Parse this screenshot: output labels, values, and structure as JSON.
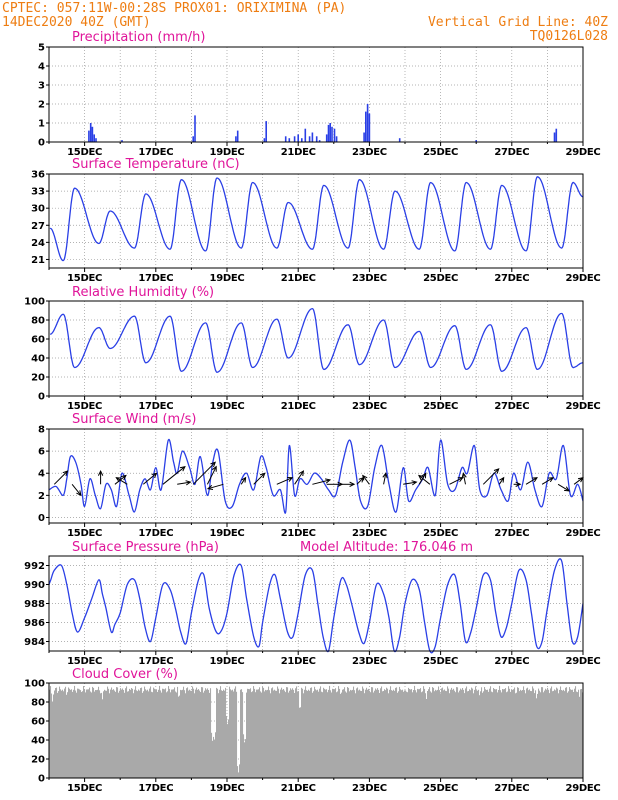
{
  "header": {
    "line1_left": "CPTEC:   057:11W-00:28S   PROX01: ORIXIMINA (PA)",
    "line2_left": "14DEC2020 40Z (GMT)",
    "line2_right": "Vertical Grid Line: 40Z",
    "line3_right": "TQ0126L028"
  },
  "colors": {
    "header": "#ee7d12",
    "panel_title": "#e0159a",
    "series": "#2a3fe6",
    "cloud": "#a9a9a9",
    "arrow": "#000000"
  },
  "x_axis": {
    "range_days": [
      14.0,
      29.0
    ],
    "tick_days": [
      15,
      17,
      19,
      21,
      23,
      25,
      27,
      29
    ],
    "tick_labels": [
      "15DEC",
      "17DEC",
      "19DEC",
      "21DEC",
      "23DEC",
      "25DEC",
      "27DEC",
      "29DEC"
    ],
    "minor_every_day": true
  },
  "chart_data": [
    {
      "type": "bar",
      "title": "Precipitation (mm/h)",
      "ylim": [
        0,
        5
      ],
      "yticks": [
        0,
        1,
        2,
        3,
        4,
        5
      ],
      "x": [
        15.12,
        15.17,
        15.22,
        15.27,
        15.32,
        16.05,
        18.05,
        18.1,
        19.25,
        19.3,
        20.05,
        20.1,
        20.65,
        20.75,
        20.9,
        21.0,
        21.1,
        21.2,
        21.32,
        21.4,
        21.52,
        21.6,
        21.8,
        21.85,
        21.9,
        21.95,
        22.02,
        22.08,
        22.85,
        22.9,
        22.95,
        23.0,
        23.85,
        26.0,
        28.2,
        28.25
      ],
      "values": [
        0.6,
        1.0,
        0.8,
        0.4,
        0.2,
        0.1,
        0.3,
        1.4,
        0.3,
        0.6,
        0.2,
        1.1,
        0.3,
        0.2,
        0.3,
        0.4,
        0.2,
        0.7,
        0.3,
        0.5,
        0.3,
        0.1,
        0.4,
        0.9,
        1.0,
        0.8,
        0.7,
        0.3,
        0.5,
        1.6,
        2.0,
        1.5,
        0.2,
        0.1,
        0.5,
        0.7
      ]
    },
    {
      "type": "line",
      "title": "Surface Temperature (nC)",
      "ylim": [
        19.5,
        36
      ],
      "yticks": [
        21,
        24,
        27,
        30,
        33,
        36
      ],
      "min_times": [
        14.03,
        14.4,
        15.4,
        16.4,
        17.4,
        18.4,
        19.4,
        20.4,
        21.4,
        22.4,
        23.4,
        24.4,
        25.4,
        26.4,
        27.4,
        28.4,
        29.0
      ],
      "max_times": [
        14.72,
        15.72,
        16.72,
        17.72,
        18.72,
        19.72,
        20.72,
        21.72,
        22.72,
        23.72,
        24.72,
        25.72,
        26.72,
        27.72,
        28.72
      ],
      "min_values": [
        26.5,
        20.8,
        23.8,
        23.0,
        22.8,
        22.5,
        23.0,
        23.0,
        22.8,
        23.0,
        22.8,
        22.8,
        22.5,
        22.8,
        22.5,
        23.0,
        32.0
      ],
      "max_values": [
        33.5,
        29.5,
        32.5,
        35.0,
        35.3,
        34.5,
        31.0,
        34.0,
        35.0,
        33.0,
        34.5,
        34.5,
        34.0,
        35.5,
        34.5
      ]
    },
    {
      "type": "line",
      "title": "Relative Humidity (%)",
      "ylim": [
        0,
        100
      ],
      "yticks": [
        0,
        20,
        40,
        60,
        80,
        100
      ],
      "min_times": [
        14.72,
        15.72,
        16.72,
        17.72,
        18.72,
        19.72,
        20.72,
        21.72,
        22.72,
        23.72,
        24.72,
        25.72,
        26.72,
        27.72,
        28.72
      ],
      "max_times": [
        14.03,
        14.4,
        15.4,
        16.4,
        17.4,
        18.4,
        19.4,
        20.4,
        21.4,
        22.4,
        23.4,
        24.4,
        25.4,
        26.4,
        27.4,
        28.4,
        29.0
      ],
      "min_values": [
        30,
        50,
        35,
        26,
        25,
        30,
        40,
        28,
        33,
        30,
        30,
        28,
        26,
        28,
        30
      ],
      "max_values": [
        65,
        86,
        72,
        84,
        84,
        77,
        77,
        81,
        92,
        75,
        80,
        68,
        74,
        75,
        72,
        87,
        35
      ]
    },
    {
      "type": "line",
      "title": "Surface Wind (m/s)",
      "ylim": [
        -0.5,
        8
      ],
      "yticks": [
        0,
        2,
        4,
        6,
        8
      ],
      "x": [
        14.0,
        14.2,
        14.4,
        14.5,
        14.6,
        14.75,
        14.9,
        15.0,
        15.15,
        15.3,
        15.45,
        15.6,
        15.75,
        15.9,
        16.05,
        16.25,
        16.4,
        16.55,
        16.7,
        16.85,
        17.0,
        17.15,
        17.35,
        17.5,
        17.6,
        17.75,
        17.95,
        18.1,
        18.25,
        18.45,
        18.6,
        18.75,
        18.95,
        19.15,
        19.35,
        19.55,
        19.75,
        19.95,
        20.1,
        20.3,
        20.5,
        20.65,
        20.75,
        20.9,
        21.05,
        21.25,
        21.45,
        21.65,
        21.85,
        22.05,
        22.25,
        22.45,
        22.6,
        22.75,
        22.95,
        23.15,
        23.35,
        23.55,
        23.75,
        23.95,
        24.1,
        24.3,
        24.5,
        24.65,
        24.85,
        25.0,
        25.2,
        25.4,
        25.6,
        25.75,
        25.95,
        26.1,
        26.3,
        26.5,
        26.7,
        26.9,
        27.05,
        27.25,
        27.45,
        27.65,
        27.85,
        28.05,
        28.25,
        28.45,
        28.65,
        28.85,
        29.0
      ],
      "values": [
        2.5,
        2.8,
        2.0,
        3.5,
        5.5,
        5.0,
        3.0,
        1.0,
        3.5,
        2.0,
        0.8,
        3.0,
        2.5,
        1.0,
        4.0,
        2.0,
        0.5,
        2.5,
        3.5,
        2.5,
        4.5,
        2.5,
        7.0,
        5.0,
        4.0,
        6.0,
        4.5,
        3.0,
        5.5,
        2.0,
        5.0,
        6.0,
        1.5,
        1.0,
        3.0,
        4.0,
        2.5,
        5.5,
        4.5,
        2.0,
        2.5,
        0.5,
        6.5,
        2.0,
        3.5,
        3.0,
        4.0,
        3.5,
        2.5,
        2.0,
        5.0,
        7.0,
        4.5,
        1.5,
        1.0,
        4.5,
        6.5,
        3.0,
        0.5,
        4.5,
        1.5,
        2.5,
        3.5,
        4.5,
        2.0,
        7.0,
        3.0,
        2.5,
        4.5,
        4.0,
        6.5,
        2.5,
        2.0,
        4.0,
        2.5,
        1.5,
        4.0,
        2.5,
        5.0,
        2.5,
        1.0,
        4.0,
        3.5,
        6.5,
        2.0,
        3.0,
        1.5
      ],
      "arrows": [
        {
          "x": 14.15,
          "u": 0.6,
          "v": 0.6
        },
        {
          "x": 14.65,
          "u": 0.4,
          "v": -0.5
        },
        {
          "x": 15.45,
          "u": 0.0,
          "v": 0.6
        },
        {
          "x": 15.85,
          "u": 0.5,
          "v": 0.4
        },
        {
          "x": 16.2,
          "u": -0.5,
          "v": 0.3
        },
        {
          "x": 16.65,
          "u": 0.6,
          "v": 0.5
        },
        {
          "x": 17.2,
          "u": 1.0,
          "v": 0.8
        },
        {
          "x": 17.6,
          "u": 0.6,
          "v": 0.1
        },
        {
          "x": 18.05,
          "u": 1.0,
          "v": 1.0
        },
        {
          "x": 18.45,
          "u": 0.4,
          "v": 0.8
        },
        {
          "x": 18.9,
          "u": -0.7,
          "v": -0.2
        },
        {
          "x": 19.4,
          "u": 0.2,
          "v": 0.3
        },
        {
          "x": 19.75,
          "u": 0.5,
          "v": 0.5
        },
        {
          "x": 20.4,
          "u": 0.7,
          "v": 0.3
        },
        {
          "x": 20.9,
          "u": 0.4,
          "v": 0.6
        },
        {
          "x": 21.4,
          "u": 0.8,
          "v": 0.2
        },
        {
          "x": 21.8,
          "u": 0.7,
          "v": 0.0
        },
        {
          "x": 22.2,
          "u": 0.6,
          "v": 0.0
        },
        {
          "x": 22.65,
          "u": 0.3,
          "v": 0.3
        },
        {
          "x": 23.0,
          "u": -0.3,
          "v": 0.4
        },
        {
          "x": 23.4,
          "u": 0.1,
          "v": 0.5
        },
        {
          "x": 23.95,
          "u": 0.6,
          "v": 0.1
        },
        {
          "x": 24.4,
          "u": 0.3,
          "v": 0.5
        },
        {
          "x": 24.7,
          "u": -0.5,
          "v": 0.4
        },
        {
          "x": 25.25,
          "u": 0.6,
          "v": 0.3
        },
        {
          "x": 25.7,
          "u": -0.1,
          "v": 0.5
        },
        {
          "x": 26.2,
          "u": 0.7,
          "v": 0.7
        },
        {
          "x": 26.65,
          "u": 0.2,
          "v": 0.3
        },
        {
          "x": 27.05,
          "u": 0.3,
          "v": 0.0
        },
        {
          "x": 27.4,
          "u": 0.5,
          "v": 0.3
        },
        {
          "x": 27.85,
          "u": 0.5,
          "v": 0.3
        },
        {
          "x": 28.3,
          "u": 0.5,
          "v": -0.3
        },
        {
          "x": 28.75,
          "u": 0.4,
          "v": 0.3
        }
      ]
    },
    {
      "type": "line",
      "title": "Surface Pressure (hPa)",
      "annotation": "Model Altitude: 176.046 m",
      "ylim": [
        983,
        993
      ],
      "yticks": [
        984,
        986,
        988,
        990,
        992
      ],
      "x": [
        14.0,
        14.05,
        14.15,
        14.35,
        14.5,
        14.65,
        14.8,
        15.0,
        15.2,
        15.4,
        15.5,
        15.6,
        15.75,
        15.85,
        16.0,
        16.2,
        16.4,
        16.55,
        16.7,
        16.85,
        17.0,
        17.2,
        17.4,
        17.55,
        17.7,
        17.85,
        18.0,
        18.2,
        18.35,
        18.5,
        18.7,
        18.85,
        19.0,
        19.2,
        19.4,
        19.55,
        19.75,
        19.9,
        20.0,
        20.2,
        20.35,
        20.5,
        20.7,
        20.85,
        21.0,
        21.2,
        21.4,
        21.55,
        21.7,
        21.85,
        22.0,
        22.2,
        22.35,
        22.5,
        22.7,
        22.85,
        23.0,
        23.2,
        23.4,
        23.55,
        23.7,
        23.85,
        24.0,
        24.2,
        24.4,
        24.55,
        24.7,
        24.85,
        25.0,
        25.2,
        25.4,
        25.55,
        25.7,
        25.85,
        26.0,
        26.2,
        26.4,
        26.55,
        26.7,
        26.85,
        27.0,
        27.2,
        27.4,
        27.55,
        27.7,
        27.85,
        28.0,
        28.2,
        28.4,
        28.55,
        28.7,
        28.85,
        29.0
      ],
      "values": [
        990.0,
        990.5,
        991.5,
        992.0,
        990.0,
        987.0,
        985.0,
        986.5,
        988.5,
        990.5,
        989.0,
        987.5,
        985.0,
        985.8,
        987.0,
        990.0,
        990.5,
        988.5,
        985.5,
        984.0,
        986.5,
        990.0,
        989.5,
        987.5,
        985.0,
        983.8,
        987.0,
        990.5,
        991.0,
        987.5,
        985.0,
        985.2,
        987.0,
        991.0,
        992.0,
        988.5,
        984.5,
        983.5,
        986.0,
        990.0,
        991.0,
        988.5,
        985.0,
        984.5,
        987.0,
        991.0,
        991.5,
        988.0,
        984.5,
        983.0,
        986.5,
        990.5,
        990.0,
        988.0,
        985.0,
        983.8,
        986.0,
        990.0,
        989.0,
        986.5,
        983.0,
        984.5,
        988.0,
        990.5,
        989.5,
        986.0,
        983.0,
        983.5,
        986.5,
        990.0,
        991.0,
        988.0,
        984.0,
        985.0,
        987.5,
        991.0,
        990.5,
        987.0,
        984.5,
        985.5,
        988.0,
        991.5,
        990.5,
        987.0,
        983.5,
        984.0,
        987.5,
        991.5,
        992.5,
        988.0,
        984.0,
        984.5,
        988.0
      ]
    },
    {
      "type": "area",
      "title": "Cloud Cover (%)",
      "ylim": [
        0,
        100
      ],
      "yticks": [
        0,
        20,
        40,
        60,
        80,
        100
      ],
      "mean_value": 93,
      "dips": [
        {
          "x": 14.1,
          "value": 80
        },
        {
          "x": 14.5,
          "value": 85
        },
        {
          "x": 14.9,
          "value": 88
        },
        {
          "x": 15.5,
          "value": 82
        },
        {
          "x": 16.8,
          "value": 90
        },
        {
          "x": 17.3,
          "value": 90
        },
        {
          "x": 17.65,
          "value": 82
        },
        {
          "x": 18.6,
          "value": 37
        },
        {
          "x": 18.65,
          "value": 40
        },
        {
          "x": 19.02,
          "value": 55
        },
        {
          "x": 19.32,
          "value": 5
        },
        {
          "x": 19.5,
          "value": 35
        },
        {
          "x": 21.05,
          "value": 70
        },
        {
          "x": 22.2,
          "value": 85
        },
        {
          "x": 24.0,
          "value": 88
        },
        {
          "x": 24.6,
          "value": 82
        },
        {
          "x": 26.1,
          "value": 85
        },
        {
          "x": 27.1,
          "value": 88
        },
        {
          "x": 27.7,
          "value": 82
        },
        {
          "x": 28.9,
          "value": 85
        }
      ]
    }
  ]
}
